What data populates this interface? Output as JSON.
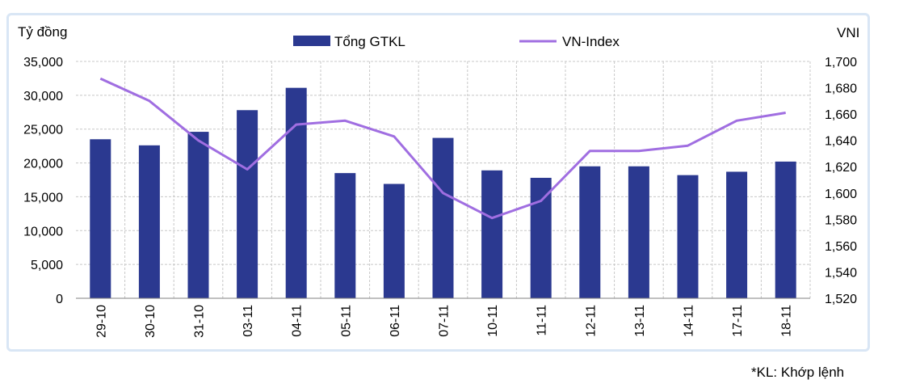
{
  "chart_data": {
    "type": "bar+line",
    "categories": [
      "29-10",
      "30-10",
      "31-10",
      "03-11",
      "04-11",
      "05-11",
      "06-11",
      "07-11",
      "10-11",
      "11-11",
      "12-11",
      "13-11",
      "14-11",
      "17-11",
      "18-11"
    ],
    "series": [
      {
        "name": "Tổng GTKL",
        "type": "bar",
        "axis": "left",
        "color": "#2b3990",
        "values": [
          23500,
          22600,
          24600,
          27800,
          31100,
          18500,
          16900,
          23700,
          18900,
          17800,
          19500,
          19500,
          18200,
          18700,
          20200
        ]
      },
      {
        "name": "VN-Index",
        "type": "line",
        "axis": "right",
        "color": "#a06ee1",
        "values": [
          1687,
          1670,
          1640,
          1618,
          1652,
          1655,
          1643,
          1600,
          1581,
          1594,
          1632,
          1632,
          1636,
          1655,
          1661
        ]
      }
    ],
    "ylabel_left": "Tỷ đồng",
    "ylabel_right": "VNI",
    "ylim_left": [
      0,
      35000
    ],
    "ylim_right": [
      1520,
      1700
    ],
    "yticks_left": [
      "0",
      "5,000",
      "10,000",
      "15,000",
      "20,000",
      "25,000",
      "30,000",
      "35,000"
    ],
    "yticks_right": [
      "1,520",
      "1,540",
      "1,560",
      "1,580",
      "1,600",
      "1,620",
      "1,640",
      "1,660",
      "1,680",
      "1,700"
    ],
    "legend": [
      "Tổng GTKL",
      "VN-Index"
    ],
    "legend_position": "top-center",
    "grid": true,
    "footnote": "*KL: Khớp lệnh"
  }
}
